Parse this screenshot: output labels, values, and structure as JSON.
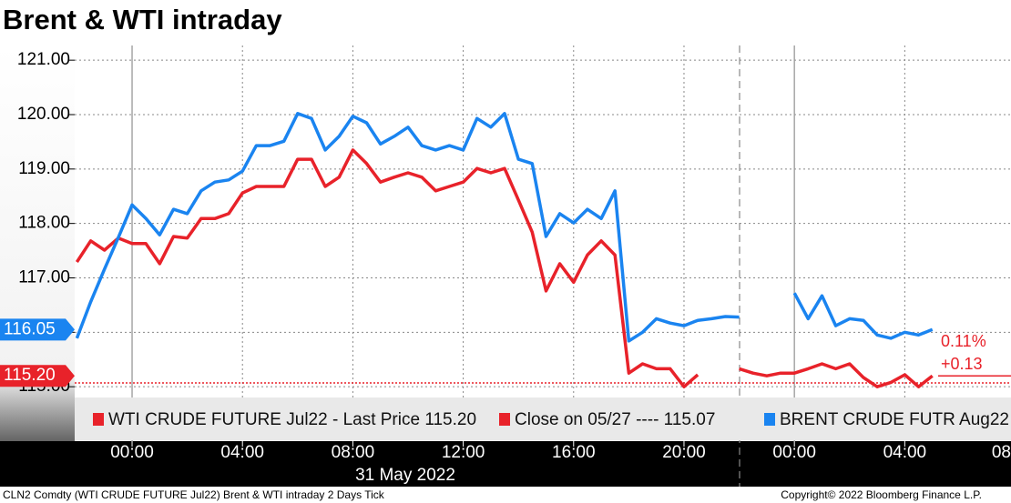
{
  "chart_data": {
    "type": "line",
    "title": "Brent & WTI intraday",
    "date_label": "31 May 2022",
    "footer_left": "CLN2 Comdty (WTI CRUDE FUTURE  Jul22) Brent & WTI intraday 2 Days  Tick",
    "footer_right": "Copyright© 2022 Bloomberg Finance L.P.",
    "xlim": [
      -2.08,
      31.85
    ],
    "ylim": [
      114.0,
      121.27
    ],
    "xticks": [
      {
        "value": 0,
        "label": "00:00"
      },
      {
        "value": 4,
        "label": "04:00"
      },
      {
        "value": 8,
        "label": "08:00"
      },
      {
        "value": 12,
        "label": "12:00"
      },
      {
        "value": 16,
        "label": "16:00"
      },
      {
        "value": 20,
        "label": "20:00"
      },
      {
        "value": 24,
        "label": "00:00"
      },
      {
        "value": 28,
        "label": "04:00"
      },
      {
        "value": 32,
        "label": "08"
      }
    ],
    "yticks": [
      {
        "value": 115,
        "label": "115.00"
      },
      {
        "value": 116,
        "label": "116.00"
      },
      {
        "value": 117,
        "label": "117.00"
      },
      {
        "value": 118,
        "label": "118.00"
      },
      {
        "value": 119,
        "label": "119.00"
      },
      {
        "value": 120,
        "label": "120.00"
      },
      {
        "value": 121,
        "label": "121.00"
      }
    ],
    "grid": true,
    "x": [
      -2,
      -1.5,
      -1,
      -0.5,
      0,
      0.5,
      1,
      1.5,
      2,
      2.5,
      3,
      3.5,
      4,
      4.5,
      5,
      5.5,
      6,
      6.5,
      7,
      7.5,
      8,
      8.5,
      9,
      9.5,
      10,
      10.5,
      11,
      11.5,
      12,
      12.5,
      13,
      13.5,
      14,
      14.5,
      15,
      15.5,
      16,
      16.5,
      17,
      17.5,
      18,
      18.5,
      19,
      19.5,
      20,
      20.5,
      21,
      21.5,
      22,
      22.5,
      23,
      23.5,
      24,
      24.5,
      25,
      25.5,
      26,
      26.5,
      27,
      27.5,
      28,
      28.5,
      29,
      29.5
    ],
    "series": [
      {
        "name": "WTI CRUDE FUTURE Jul22 - Last Price 115.20",
        "color": "#e8222a",
        "values": [
          117.29,
          117.68,
          117.51,
          117.73,
          117.63,
          117.63,
          117.26,
          117.76,
          117.73,
          118.09,
          118.09,
          118.18,
          118.56,
          118.68,
          118.68,
          118.68,
          119.18,
          119.18,
          118.68,
          118.85,
          119.35,
          119.1,
          118.76,
          118.85,
          118.93,
          118.85,
          118.6,
          118.68,
          118.76,
          119.01,
          118.93,
          119.01,
          118.43,
          117.84,
          116.76,
          117.26,
          116.92,
          117.42,
          117.68,
          117.42,
          115.25,
          115.42,
          115.33,
          115.33,
          115.0,
          115.22,
          null,
          null,
          115.33,
          115.25,
          115.2,
          115.25,
          115.25,
          115.33,
          115.42,
          115.33,
          115.42,
          115.17,
          115.0,
          115.08,
          115.22,
          115.0,
          115.2,
          null
        ]
      },
      {
        "name": "BRENT CRUDE FUTR Aug22 -",
        "color": "#1a84f0",
        "values": [
          115.89,
          116.56,
          117.16,
          117.74,
          118.34,
          118.09,
          117.79,
          118.26,
          118.18,
          118.6,
          118.76,
          118.8,
          118.96,
          119.43,
          119.43,
          119.51,
          120.02,
          119.93,
          119.35,
          119.6,
          119.97,
          119.85,
          119.46,
          119.6,
          119.77,
          119.43,
          119.35,
          119.43,
          119.35,
          119.93,
          119.77,
          120.02,
          119.18,
          119.1,
          117.76,
          118.18,
          118.01,
          118.26,
          118.09,
          118.6,
          115.84,
          116.0,
          116.25,
          116.17,
          116.12,
          116.22,
          116.25,
          116.29,
          116.28,
          null,
          null,
          null,
          116.72,
          116.25,
          116.67,
          116.12,
          116.25,
          116.22,
          115.95,
          115.89,
          116.0,
          115.95,
          116.05,
          null
        ]
      }
    ],
    "reference_line": {
      "label": "Close on 05/27 ---- 115.07",
      "value": 115.07,
      "color": "#e8222a"
    },
    "last_price_tags": [
      {
        "label": "116.05",
        "value": 116.05,
        "color": "#1a84f0"
      },
      {
        "label": "115.20",
        "value": 115.2,
        "color": "#e8222a"
      }
    ],
    "annotations": [
      "0.11%",
      "+0.13"
    ]
  }
}
